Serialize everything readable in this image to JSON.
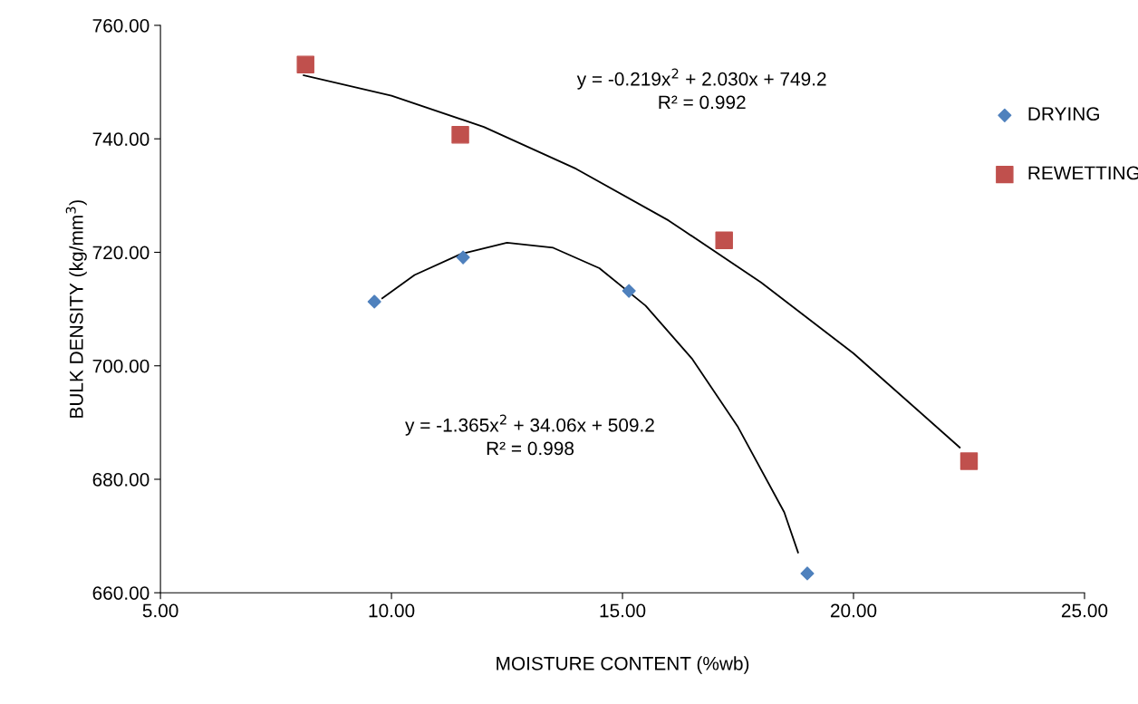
{
  "chart_data": {
    "type": "scatter",
    "xlabel": "MOISTURE CONTENT (%wb)",
    "ylabel": "BULK DENSITY (kg/mm$^{3}$)",
    "xlim": [
      5,
      25
    ],
    "xticks": [
      {
        "value": 5,
        "label": "5.00"
      },
      {
        "value": 10,
        "label": "10.00"
      },
      {
        "value": 15,
        "label": "15.00"
      },
      {
        "value": 20,
        "label": "20.00"
      },
      {
        "value": 25,
        "label": "25.00"
      }
    ],
    "ylim": [
      660,
      760
    ],
    "yticks": [
      {
        "value": 660,
        "label": "660.00"
      },
      {
        "value": 680,
        "label": "680.00"
      },
      {
        "value": 700,
        "label": "700.00"
      },
      {
        "value": 720,
        "label": "720.00"
      },
      {
        "value": 740,
        "label": "740.00"
      },
      {
        "value": 760,
        "label": "760.00"
      }
    ],
    "grid": false,
    "legend": "right",
    "series": [
      {
        "name": "DRYING",
        "color": "#4f81bd",
        "marker": "diamond",
        "x": [
          9.63,
          11.55,
          15.14,
          19.0
        ],
        "values": [
          711.3,
          719.1,
          713.2,
          663.4
        ]
      },
      {
        "name": "REWETTING",
        "color": "#c0504d",
        "marker": "square",
        "x": [
          8.14,
          11.49,
          17.2,
          22.5
        ],
        "values": [
          753.1,
          740.7,
          722.1,
          683.2
        ]
      },
      {
        "type": "line",
        "color": "#000000",
        "marker": "none",
        "x": [
          9.8,
          10.5,
          11.5,
          12.5,
          13.5,
          14.5,
          15.5,
          16.5,
          17.5,
          18.5,
          18.8
        ],
        "values": [
          711.9,
          716.0,
          719.7,
          721.7,
          720.8,
          717.2,
          710.6,
          701.3,
          689.2,
          674.2,
          667.1
        ]
      },
      {
        "type": "line",
        "color": "#000000",
        "marker": "none",
        "x": [
          8.1,
          10,
          12,
          14,
          16,
          18,
          20,
          22.3
        ],
        "values": [
          751.2,
          747.6,
          742.1,
          734.7,
          725.6,
          714.7,
          702.2,
          685.6
        ]
      }
    ],
    "annotations": [
      "y = -0.219x$^{2}$ + 2.030x + 749.2\nR² = 0.992",
      "y = -1.365x$^{2}$ + 34.06x + 509.2\nR² = 0.998"
    ]
  }
}
